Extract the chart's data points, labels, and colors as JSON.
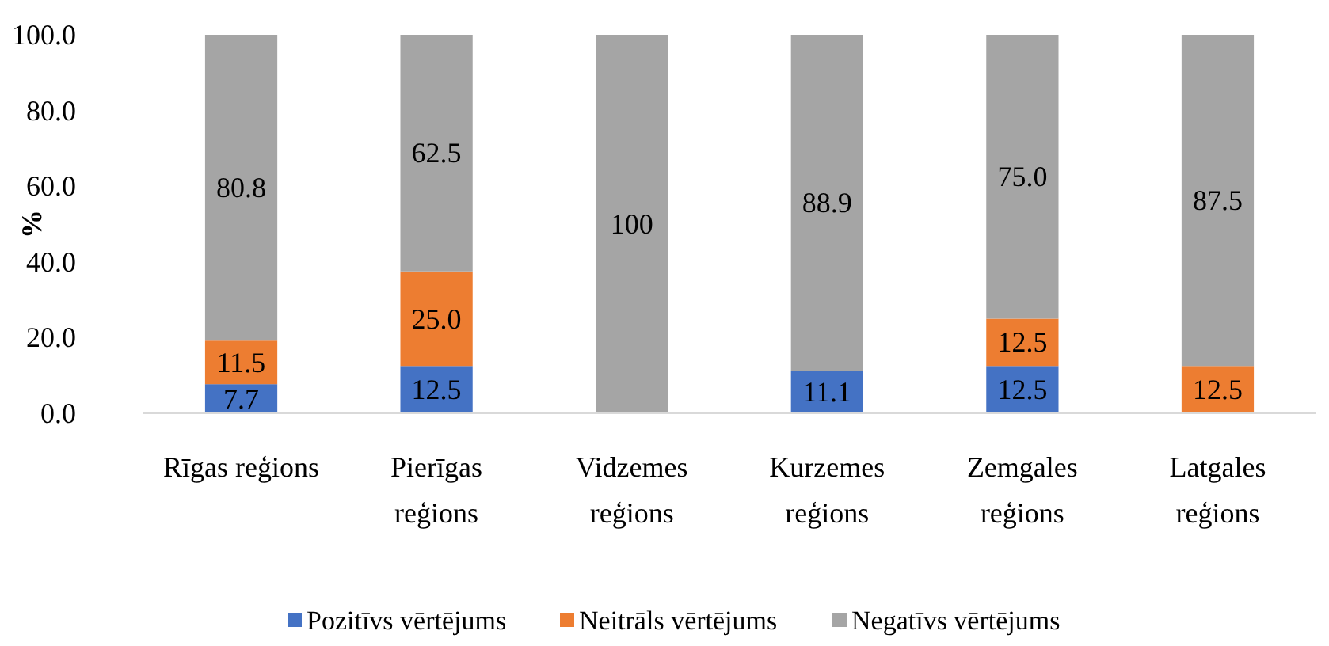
{
  "chart_data": {
    "type": "bar",
    "stacked": true,
    "ylabel": "%",
    "categories": [
      "Rīgas reģions",
      "Pierīgas reģions",
      "Vidzemes reģions",
      "Kurzemes reģions",
      "Zemgales reģions",
      "Latgales reģions"
    ],
    "series": [
      {
        "name": "Pozitīvs vērtējums",
        "color": "#4472c4",
        "values": [
          7.7,
          12.5,
          0,
          11.1,
          12.5,
          0
        ],
        "value_labels": [
          "7.7",
          "12.5",
          null,
          "11.1",
          "12.5",
          null
        ]
      },
      {
        "name": "Neitrāls vērtējums",
        "color": "#ed7d31",
        "values": [
          11.5,
          25.0,
          0,
          0,
          12.5,
          12.5
        ],
        "value_labels": [
          "11.5",
          "25.0",
          null,
          null,
          "12.5",
          "12.5"
        ]
      },
      {
        "name": "Negatīvs vērtējums",
        "color": "#a5a5a5",
        "values": [
          80.8,
          62.5,
          100,
          88.9,
          75.0,
          87.5
        ],
        "value_labels": [
          "80.8",
          "62.5",
          "100",
          "88.9",
          "75.0",
          "87.5"
        ]
      }
    ],
    "ylim": [
      0,
      100
    ],
    "yticks": [
      {
        "value": 0,
        "label": "0.0"
      },
      {
        "value": 20,
        "label": "20.0"
      },
      {
        "value": 40,
        "label": "40.0"
      },
      {
        "value": 60,
        "label": "60.0"
      },
      {
        "value": 80,
        "label": "80.0"
      },
      {
        "value": 100,
        "label": "100.0"
      }
    ],
    "legend": "bottom"
  }
}
